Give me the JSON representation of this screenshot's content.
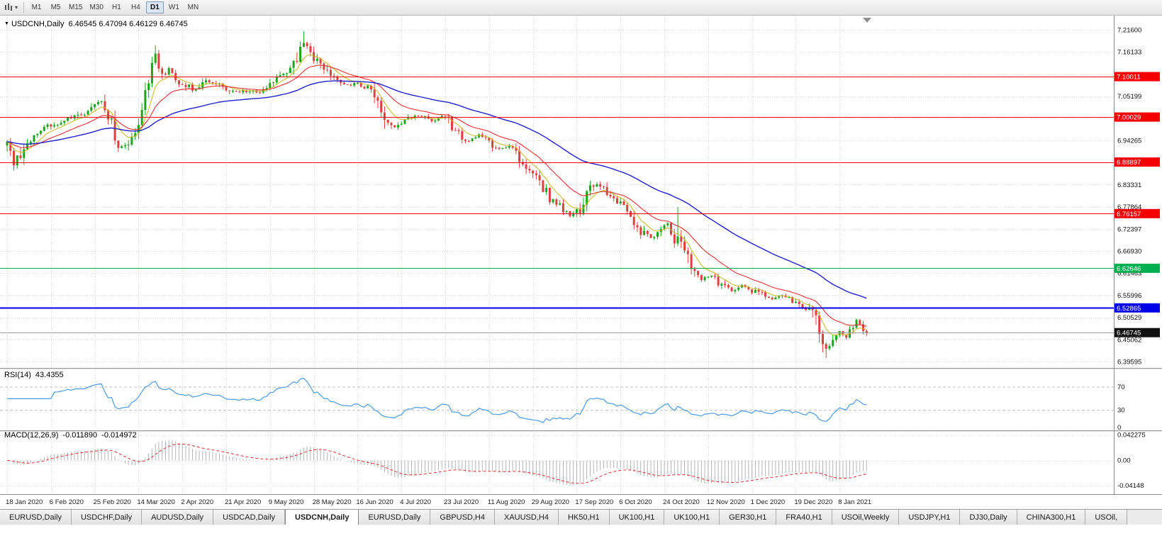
{
  "toolbar": {
    "timeframes": [
      "M1",
      "M5",
      "M15",
      "M30",
      "H1",
      "H4",
      "D1",
      "W1",
      "MN"
    ],
    "active_timeframe": "D1"
  },
  "chart": {
    "title": "USDCNH,Daily",
    "ohlc_line": "6.46545 6.47094 6.46129 6.46745",
    "open": "6.46545",
    "high": "6.47094",
    "low": "6.46129",
    "close": "6.46745"
  },
  "rsi": {
    "label": "RSI(14)",
    "value": "43.4355",
    "axis_labels": [
      "70",
      "30",
      "0"
    ]
  },
  "macd": {
    "label": "MACD(12,26,9)",
    "main_value": "-0.011890",
    "signal_value": "-0.014972",
    "axis_labels": [
      "0.042275",
      "0.00",
      "-0.04148"
    ]
  },
  "tabs": {
    "items": [
      "EURUSD,Daily",
      "USDCHF,Daily",
      "AUDUSD,Daily",
      "USDCAD,Daily",
      "USDCNH,Daily",
      "EURUSD,Daily",
      "GBPUSD,H4",
      "XAUUSD,H4",
      "HK50,H1",
      "UK100,H1",
      "UK100,H1",
      "GER30,H1",
      "FRA40,H1",
      "USOil,Weekly",
      "USDJPY,H1",
      "DJ30,Daily",
      "CHINA300,H1",
      "USOil,"
    ],
    "active_index": 4
  },
  "chart_data": {
    "type": "candlestick",
    "symbol": "USDCNH",
    "timeframe": "Daily",
    "candle_count": 256,
    "last_close": 6.46745,
    "price_axis": {
      "top_value": 7.216,
      "bottom_value": 6.39595,
      "labels": [
        "7.21600",
        "7.16133",
        "7.10666",
        "7.05199",
        "6.99732",
        "6.94265",
        "6.88798",
        "6.83331",
        "6.77864",
        "6.72397",
        "6.66930",
        "6.61463",
        "6.55996",
        "6.50529",
        "6.45062",
        "6.39595"
      ]
    },
    "date_labels": [
      "18 Jan 2020",
      "6 Feb 2020",
      "25 Feb 2020",
      "14 Mar 2020",
      "2 Apr 2020",
      "21 Apr 2020",
      "9 May 2020",
      "28 May 2020",
      "16 Jun 2020",
      "4 Jul 2020",
      "23 Jul 2020",
      "11 Aug 2020",
      "29 Aug 2020",
      "17 Sep 2020",
      "6 Oct 2020",
      "24 Oct 2020",
      "12 Nov 2020",
      "1 Dec 2020",
      "19 Dec 2020",
      "8 Jan 2021"
    ],
    "hlines": [
      {
        "value": 7.10011,
        "label": "7.10011",
        "color": "#F50000",
        "width": 1
      },
      {
        "value": 7.00029,
        "label": "7.00029",
        "color": "#F50000",
        "width": 1
      },
      {
        "value": 6.88897,
        "label": "6.88897",
        "color": "#F50000",
        "width": 1
      },
      {
        "value": 6.76157,
        "label": "6.76157",
        "color": "#F50000",
        "width": 1
      },
      {
        "value": 6.62646,
        "label": "6.62646",
        "color": "#00B050",
        "width": 1
      },
      {
        "value": 6.52865,
        "label": "6.52865",
        "color": "#0000E6",
        "width": 2
      }
    ],
    "current_price": {
      "value": 6.46745,
      "label": "6.46745",
      "color": "#111111"
    },
    "anchors": [
      [
        0,
        6.93
      ],
      [
        2,
        6.885
      ],
      [
        6,
        6.94
      ],
      [
        10,
        6.965
      ],
      [
        14,
        6.985
      ],
      [
        18,
        6.995
      ],
      [
        22,
        7.005
      ],
      [
        26,
        7.03
      ],
      [
        28,
        7.045
      ],
      [
        30,
        7.01
      ],
      [
        33,
        6.93
      ],
      [
        36,
        6.94
      ],
      [
        39,
        6.985
      ],
      [
        41,
        7.06
      ],
      [
        43,
        7.13
      ],
      [
        44,
        7.155
      ],
      [
        46,
        7.1
      ],
      [
        48,
        7.12
      ],
      [
        50,
        7.095
      ],
      [
        53,
        7.08
      ],
      [
        56,
        7.065
      ],
      [
        59,
        7.09
      ],
      [
        62,
        7.085
      ],
      [
        65,
        7.07
      ],
      [
        68,
        7.06
      ],
      [
        71,
        7.065
      ],
      [
        75,
        7.06
      ],
      [
        78,
        7.08
      ],
      [
        81,
        7.1
      ],
      [
        84,
        7.125
      ],
      [
        86,
        7.145
      ],
      [
        88,
        7.185
      ],
      [
        90,
        7.16
      ],
      [
        92,
        7.14
      ],
      [
        95,
        7.115
      ],
      [
        98,
        7.09
      ],
      [
        101,
        7.08
      ],
      [
        104,
        7.085
      ],
      [
        107,
        7.07
      ],
      [
        110,
        7.04
      ],
      [
        112,
        7.0
      ],
      [
        114,
        6.975
      ],
      [
        117,
        6.985
      ],
      [
        120,
        7.0
      ],
      [
        123,
        7.005
      ],
      [
        126,
        6.99
      ],
      [
        129,
        7.005
      ],
      [
        131,
        6.99
      ],
      [
        134,
        6.955
      ],
      [
        137,
        6.94
      ],
      [
        140,
        6.955
      ],
      [
        143,
        6.94
      ],
      [
        146,
        6.92
      ],
      [
        149,
        6.93
      ],
      [
        152,
        6.9
      ],
      [
        155,
        6.87
      ],
      [
        158,
        6.845
      ],
      [
        161,
        6.8
      ],
      [
        164,
        6.78
      ],
      [
        167,
        6.758
      ],
      [
        170,
        6.775
      ],
      [
        173,
        6.825
      ],
      [
        176,
        6.835
      ],
      [
        179,
        6.8
      ],
      [
        182,
        6.785
      ],
      [
        185,
        6.755
      ],
      [
        188,
        6.72
      ],
      [
        191,
        6.7
      ],
      [
        194,
        6.72
      ],
      [
        196,
        6.74
      ],
      [
        198,
        6.7
      ],
      [
        200,
        6.69
      ],
      [
        202,
        6.655
      ],
      [
        204,
        6.615
      ],
      [
        206,
        6.6
      ],
      [
        209,
        6.61
      ],
      [
        212,
        6.585
      ],
      [
        215,
        6.572
      ],
      [
        218,
        6.585
      ],
      [
        221,
        6.572
      ],
      [
        224,
        6.562
      ],
      [
        227,
        6.548
      ],
      [
        230,
        6.558
      ],
      [
        233,
        6.545
      ],
      [
        236,
        6.533
      ],
      [
        239,
        6.52
      ],
      [
        241,
        6.47
      ],
      [
        243,
        6.425
      ],
      [
        245,
        6.445
      ],
      [
        247,
        6.468
      ],
      [
        249,
        6.452
      ],
      [
        251,
        6.48
      ],
      [
        252,
        6.498
      ],
      [
        254,
        6.472
      ],
      [
        255,
        6.46745
      ]
    ],
    "spikes": [
      {
        "i": 2,
        "low": 6.868
      },
      {
        "i": 44,
        "high": 7.178
      },
      {
        "i": 88,
        "high": 7.212
      },
      {
        "i": 199,
        "high": 6.778
      },
      {
        "i": 243,
        "low": 6.405
      }
    ],
    "colors": {
      "up": "#1CA41C",
      "down": "#DE4040",
      "ma_fast": "#C9B81E",
      "ma_mid": "#E83030",
      "ma_slow": "#2020CC",
      "rsi": "#4A9BE8",
      "macd_hist": "#B4B4B4",
      "macd_signal": "#E03030"
    }
  }
}
